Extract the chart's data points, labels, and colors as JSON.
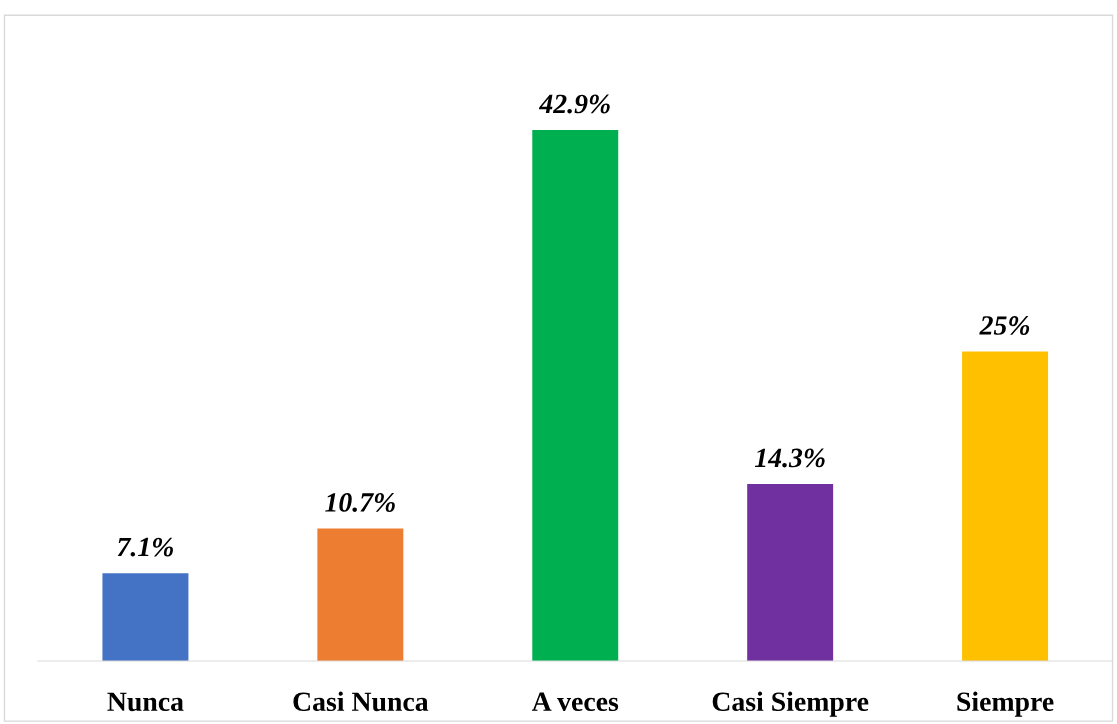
{
  "chart_data": {
    "type": "bar",
    "categories": [
      "Nunca",
      "Casi Nunca",
      "A veces",
      "Casi Siempre",
      "Siempre"
    ],
    "values": [
      7.1,
      10.7,
      42.9,
      14.3,
      25
    ],
    "colors": [
      "#4472c4",
      "#ed7d31",
      "#00b050",
      "#7030a0",
      "#ffc000"
    ],
    "value_labels": [
      "7.1%",
      "10.7%",
      "42.9%",
      "14.3%",
      "25%"
    ],
    "grid": false,
    "legend": false
  }
}
